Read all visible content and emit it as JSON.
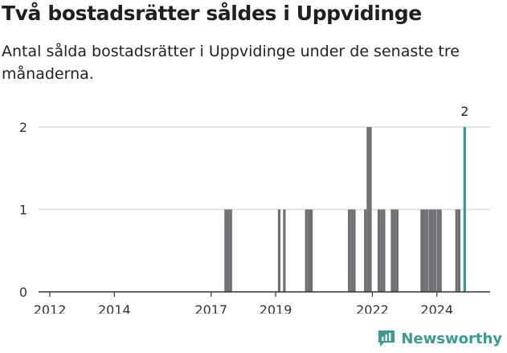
{
  "title": "Två bostadsrätter såldes i Uppvidinge",
  "subtitle": "Antal sålda bostadsrätter i Uppvidinge under de senaste tre månaderna.",
  "brand": "Newsworthy",
  "colors": {
    "bar": "#707074",
    "highlight": "#2a9d8f",
    "grid": "#dcdcdc",
    "axis": "#333333",
    "brand": "#3a9c8c"
  },
  "chart_data": {
    "type": "bar",
    "title": "",
    "xlabel": "",
    "ylabel": "",
    "ylim": [
      0,
      2
    ],
    "yticks": [
      0,
      1,
      2
    ],
    "xlim": [
      2011.65,
      2025.65
    ],
    "xtick_labels": [
      "2012",
      "2014",
      "2017",
      "2019",
      "2022",
      "2024"
    ],
    "xtick_values": [
      2012.0,
      2014.0,
      2017.0,
      2019.0,
      2022.0,
      2024.0
    ],
    "grid": true,
    "series": [
      {
        "values": [
          {
            "x": 2017.45,
            "y": 1
          },
          {
            "x": 2017.53,
            "y": 1
          },
          {
            "x": 2017.61,
            "y": 1
          },
          {
            "x": 2019.11,
            "y": 1
          },
          {
            "x": 2019.27,
            "y": 1
          },
          {
            "x": 2019.95,
            "y": 1
          },
          {
            "x": 2020.03,
            "y": 1
          },
          {
            "x": 2020.11,
            "y": 1
          },
          {
            "x": 2021.28,
            "y": 1
          },
          {
            "x": 2021.36,
            "y": 1
          },
          {
            "x": 2021.44,
            "y": 1
          },
          {
            "x": 2021.78,
            "y": 1
          },
          {
            "x": 2021.86,
            "y": 2
          },
          {
            "x": 2021.94,
            "y": 2
          },
          {
            "x": 2022.2,
            "y": 1
          },
          {
            "x": 2022.28,
            "y": 1
          },
          {
            "x": 2022.36,
            "y": 1
          },
          {
            "x": 2022.61,
            "y": 1
          },
          {
            "x": 2022.69,
            "y": 1
          },
          {
            "x": 2022.77,
            "y": 1
          },
          {
            "x": 2023.53,
            "y": 1
          },
          {
            "x": 2023.61,
            "y": 1
          },
          {
            "x": 2023.69,
            "y": 1
          },
          {
            "x": 2023.78,
            "y": 1
          },
          {
            "x": 2023.86,
            "y": 1
          },
          {
            "x": 2023.94,
            "y": 1
          },
          {
            "x": 2024.03,
            "y": 1
          },
          {
            "x": 2024.11,
            "y": 1
          },
          {
            "x": 2024.61,
            "y": 1
          },
          {
            "x": 2024.69,
            "y": 1
          }
        ]
      },
      {
        "highlight": true,
        "values": [
          {
            "x": 2024.86,
            "y": 2,
            "label": "2"
          }
        ]
      }
    ]
  }
}
